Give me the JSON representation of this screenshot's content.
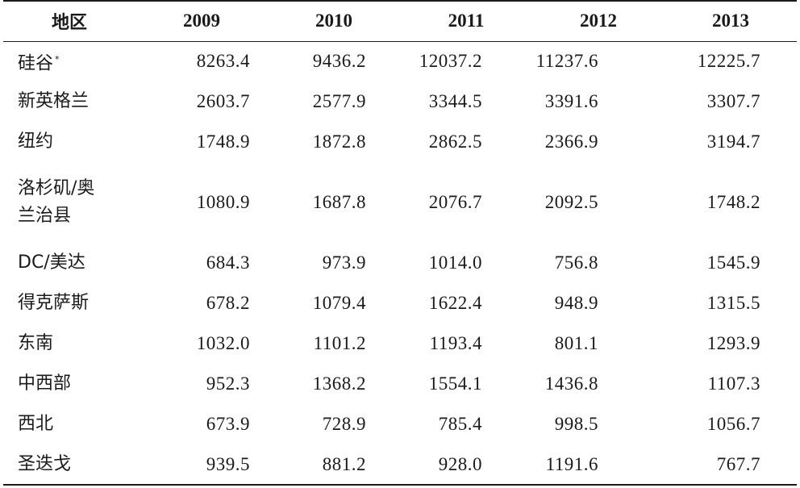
{
  "table": {
    "headers": [
      "地区",
      "2009",
      "2010",
      "2011",
      "2012",
      "2013"
    ],
    "rows": [
      {
        "region": "硅谷",
        "footnote": "*",
        "values": [
          "8263.4",
          "9436.2",
          "12037.2",
          "11237.6",
          "12225.7"
        ]
      },
      {
        "region": "新英格兰",
        "values": [
          "2603.7",
          "2577.9",
          "3344.5",
          "3391.6",
          "3307.7"
        ]
      },
      {
        "region": "纽约",
        "values": [
          "1748.9",
          "1872.8",
          "2862.5",
          "2366.9",
          "3194.7"
        ]
      },
      {
        "region_line1": "洛杉矶/奥",
        "region_line2": "兰治县",
        "values": [
          "1080.9",
          "1687.8",
          "2076.7",
          "2092.5",
          "1748.2"
        ]
      },
      {
        "region": "DC/美达",
        "values": [
          "684.3",
          "973.9",
          "1014.0",
          "756.8",
          "1545.9"
        ]
      },
      {
        "region": "得克萨斯",
        "values": [
          "678.2",
          "1079.4",
          "1622.4",
          "948.9",
          "1315.5"
        ]
      },
      {
        "region": "东南",
        "values": [
          "1032.0",
          "1101.2",
          "1193.4",
          "801.1",
          "1293.9"
        ]
      },
      {
        "region": "中西部",
        "values": [
          "952.3",
          "1368.2",
          "1554.1",
          "1436.8",
          "1107.3"
        ]
      },
      {
        "region": "西北",
        "values": [
          "673.9",
          "728.9",
          "785.4",
          "998.5",
          "1056.7"
        ]
      },
      {
        "region": "圣迭戈",
        "values": [
          "939.5",
          "881.2",
          "928.0",
          "1191.6",
          "767.7"
        ]
      }
    ]
  }
}
